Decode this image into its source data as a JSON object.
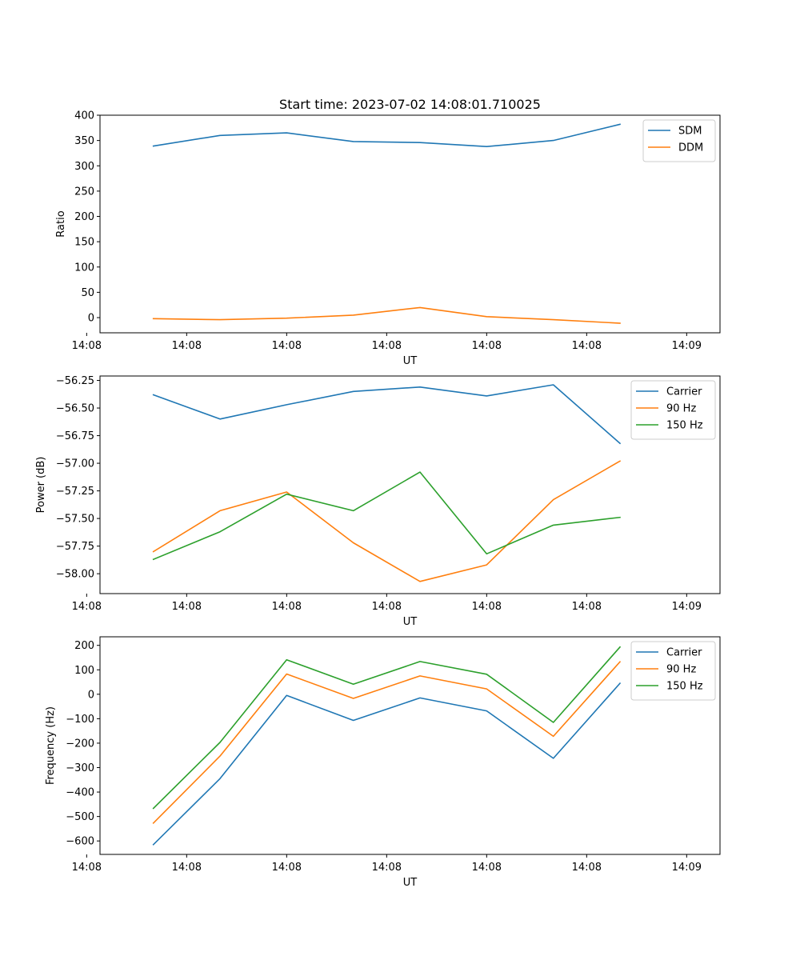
{
  "chart_data": [
    {
      "type": "line",
      "title": "Start time: 2023-07-02 14:08:01.710025",
      "xlabel": "UT",
      "ylabel": "Ratio",
      "x": [
        0.5,
        1,
        1.5,
        2,
        2.5,
        3,
        3.5,
        4
      ],
      "xlim": [
        0.1,
        4.75
      ],
      "xticks": [
        0,
        0.75,
        1.5,
        2.25,
        3,
        3.75,
        4.5
      ],
      "xtick_labels": [
        "14:08",
        "14:08",
        "14:08",
        "14:08",
        "14:08",
        "14:08",
        "14:09"
      ],
      "ylim": [
        -30,
        400
      ],
      "yticks": [
        0,
        50,
        100,
        150,
        200,
        250,
        300,
        350,
        400
      ],
      "ytick_labels": [
        "0",
        "50",
        "100",
        "150",
        "200",
        "250",
        "300",
        "350",
        "400"
      ],
      "legend_position": "top-right",
      "series": [
        {
          "name": "SDM",
          "color": "#1f77b4",
          "values": [
            339,
            360,
            365,
            348,
            346,
            338,
            350,
            382
          ]
        },
        {
          "name": "DDM",
          "color": "#ff7f0e",
          "values": [
            -2,
            -4,
            -1,
            5,
            20,
            2,
            -4,
            -11
          ]
        }
      ]
    },
    {
      "type": "line",
      "title": "",
      "xlabel": "UT",
      "ylabel": "Power (dB)",
      "x": [
        0.5,
        1,
        1.5,
        2,
        2.5,
        3,
        3.5,
        4
      ],
      "xlim": [
        0.1,
        4.75
      ],
      "xticks": [
        0,
        0.75,
        1.5,
        2.25,
        3,
        3.75,
        4.5
      ],
      "xtick_labels": [
        "14:08",
        "14:08",
        "14:08",
        "14:08",
        "14:08",
        "14:08",
        "14:09"
      ],
      "ylim": [
        -58.18,
        -56.21
      ],
      "yticks": [
        -58.0,
        -57.75,
        -57.5,
        -57.25,
        -57.0,
        -56.75,
        -56.5,
        -56.25
      ],
      "ytick_labels": [
        "−58.00",
        "−57.75",
        "−57.50",
        "−57.25",
        "−57.00",
        "−56.75",
        "−56.50",
        "−56.25"
      ],
      "legend_position": "top-right",
      "series": [
        {
          "name": "Carrier",
          "color": "#1f77b4",
          "values": [
            -56.38,
            -56.6,
            -56.47,
            -56.35,
            -56.31,
            -56.39,
            -56.29,
            -56.82
          ]
        },
        {
          "name": "90 Hz",
          "color": "#ff7f0e",
          "values": [
            -57.8,
            -57.43,
            -57.26,
            -57.72,
            -58.07,
            -57.92,
            -57.33,
            -56.98
          ]
        },
        {
          "name": "150 Hz",
          "color": "#2ca02c",
          "values": [
            -57.87,
            -57.62,
            -57.28,
            -57.43,
            -57.08,
            -57.82,
            -57.56,
            -57.49
          ]
        }
      ]
    },
    {
      "type": "line",
      "title": "",
      "xlabel": "UT",
      "ylabel": "Frequency (Hz)",
      "x": [
        0.5,
        1,
        1.5,
        2,
        2.5,
        3,
        3.5,
        4
      ],
      "xlim": [
        0.1,
        4.75
      ],
      "xticks": [
        0,
        0.75,
        1.5,
        2.25,
        3,
        3.75,
        4.5
      ],
      "xtick_labels": [
        "14:08",
        "14:08",
        "14:08",
        "14:08",
        "14:08",
        "14:08",
        "14:09"
      ],
      "ylim": [
        -655,
        235
      ],
      "yticks": [
        -600,
        -500,
        -400,
        -300,
        -200,
        -100,
        0,
        100,
        200
      ],
      "ytick_labels": [
        "−600",
        "−500",
        "−400",
        "−300",
        "−200",
        "−100",
        "0",
        "100",
        "200"
      ],
      "legend_position": "top-right",
      "series": [
        {
          "name": "Carrier",
          "color": "#1f77b4",
          "values": [
            -615,
            -345,
            -5,
            -107,
            -15,
            -68,
            -262,
            45
          ]
        },
        {
          "name": "90 Hz",
          "color": "#ff7f0e",
          "values": [
            -527,
            -253,
            83,
            -17,
            75,
            22,
            -172,
            133
          ]
        },
        {
          "name": "150 Hz",
          "color": "#2ca02c",
          "values": [
            -467,
            -197,
            141,
            41,
            134,
            82,
            -115,
            193
          ]
        }
      ]
    }
  ]
}
